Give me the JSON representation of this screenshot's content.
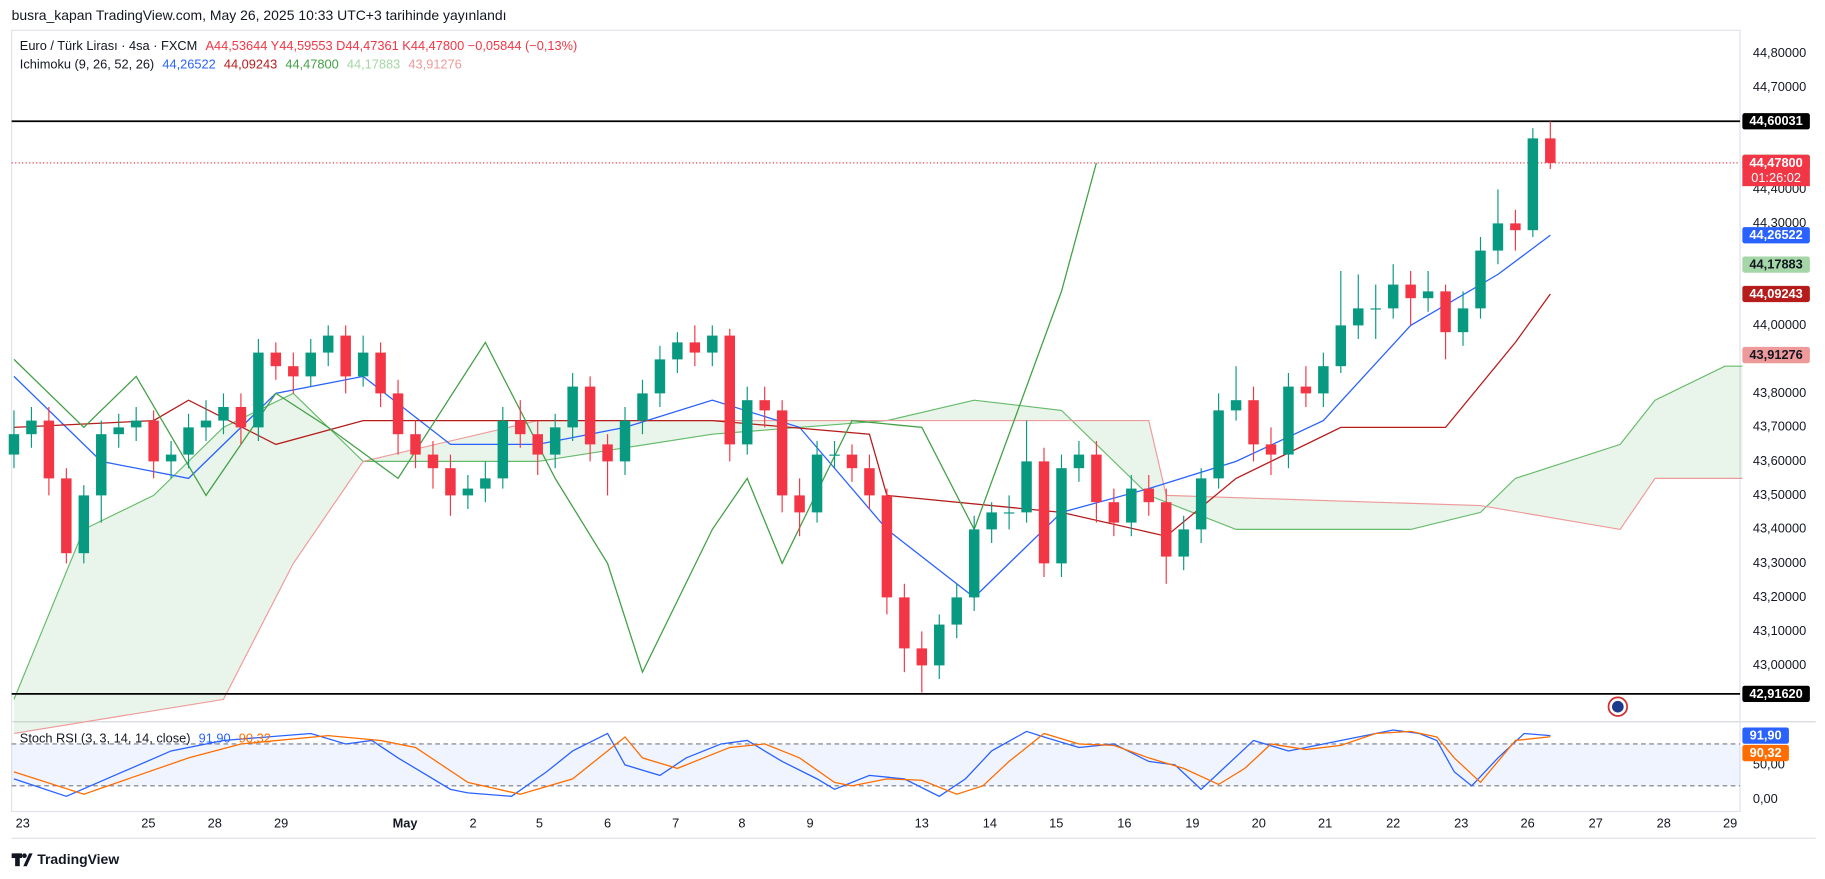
{
  "header": "busra_kapan TradingView.com, May 26, 2025 10:33 UTC+3 tarihinde yayınlandı",
  "footer": "TradingView",
  "chart_data": [
    {
      "type": "candlestick",
      "title": "Euro / Türk Lirası · 4sa · FXCM",
      "ohlc_text": "A44,53644  Y44,59553  D44,47361  K44,47800  −0,05844 (−0,13%)",
      "up_color": "#089981",
      "down_color": "#f23645",
      "open": [
        43.62,
        43.68,
        43.72,
        43.55,
        43.33,
        43.5,
        43.68,
        43.7,
        43.72,
        43.6,
        43.62,
        43.7,
        43.72,
        43.76,
        43.7,
        43.92,
        43.88,
        43.85,
        43.92,
        43.97,
        43.85,
        43.92,
        43.8,
        43.68,
        43.62,
        43.58,
        43.5,
        43.52,
        43.55,
        43.72,
        43.68,
        43.62,
        43.7,
        43.82,
        43.65,
        43.6,
        43.72,
        43.8,
        43.9,
        43.95,
        43.92,
        43.97,
        43.65,
        43.78,
        43.75,
        43.5,
        43.45,
        43.62,
        43.62,
        43.58,
        43.5,
        43.2,
        43.05,
        43.0,
        43.12,
        43.2,
        43.4,
        43.45,
        43.45,
        43.6,
        43.3,
        43.58,
        43.62,
        43.48,
        43.42,
        43.52,
        43.48,
        43.32,
        43.4,
        43.55,
        43.75,
        43.78,
        43.65,
        43.62,
        43.82,
        43.8,
        43.88,
        44.0,
        44.05,
        44.05,
        44.12,
        44.08,
        44.1,
        43.98,
        44.05,
        44.22,
        44.3,
        44.28,
        44.55
      ],
      "high": [
        43.75,
        43.76,
        43.76,
        43.58,
        43.53,
        43.72,
        43.74,
        43.76,
        43.75,
        43.66,
        43.74,
        43.78,
        43.8,
        43.8,
        43.96,
        43.95,
        43.92,
        43.96,
        44.0,
        44.0,
        43.97,
        43.95,
        43.84,
        43.72,
        43.66,
        43.62,
        43.56,
        43.6,
        43.76,
        43.78,
        43.72,
        43.74,
        43.86,
        43.85,
        43.68,
        43.76,
        43.84,
        43.94,
        43.98,
        44.0,
        44.0,
        43.99,
        43.82,
        43.82,
        43.78,
        43.55,
        43.66,
        43.66,
        43.65,
        43.62,
        43.52,
        43.24,
        43.1,
        43.15,
        43.24,
        43.44,
        43.48,
        43.5,
        43.72,
        43.64,
        43.62,
        43.66,
        43.66,
        43.52,
        43.56,
        43.56,
        43.52,
        43.44,
        43.58,
        43.8,
        43.88,
        43.82,
        43.7,
        43.86,
        43.88,
        43.92,
        44.16,
        44.15,
        44.12,
        44.18,
        44.16,
        44.16,
        44.12,
        44.1,
        44.26,
        44.4,
        44.34,
        44.58,
        44.6
      ],
      "low": [
        43.58,
        43.64,
        43.5,
        43.3,
        43.3,
        43.42,
        43.64,
        43.66,
        43.55,
        43.55,
        43.58,
        43.66,
        43.68,
        43.65,
        43.66,
        43.84,
        43.8,
        43.82,
        43.88,
        43.8,
        43.82,
        43.76,
        43.62,
        43.58,
        43.52,
        43.44,
        43.46,
        43.48,
        43.52,
        43.64,
        43.56,
        43.58,
        43.66,
        43.6,
        43.5,
        43.56,
        43.68,
        43.76,
        43.86,
        43.88,
        43.88,
        43.6,
        43.62,
        43.7,
        43.45,
        43.38,
        43.42,
        43.58,
        43.54,
        43.46,
        43.15,
        42.98,
        42.92,
        42.96,
        43.08,
        43.16,
        43.36,
        43.4,
        43.42,
        43.26,
        43.26,
        43.54,
        43.42,
        43.38,
        43.38,
        43.44,
        43.24,
        43.28,
        43.36,
        43.52,
        43.72,
        43.6,
        43.56,
        43.58,
        43.76,
        43.76,
        43.86,
        43.96,
        43.96,
        44.02,
        44.0,
        44.04,
        43.9,
        43.94,
        44.02,
        44.18,
        44.22,
        44.26,
        44.46
      ],
      "close": [
        43.68,
        43.72,
        43.55,
        43.33,
        43.5,
        43.68,
        43.7,
        43.72,
        43.6,
        43.62,
        43.7,
        43.72,
        43.76,
        43.7,
        43.92,
        43.88,
        43.85,
        43.92,
        43.97,
        43.85,
        43.92,
        43.8,
        43.68,
        43.62,
        43.58,
        43.5,
        43.52,
        43.55,
        43.72,
        43.68,
        43.62,
        43.7,
        43.82,
        43.65,
        43.6,
        43.72,
        43.8,
        43.9,
        43.95,
        43.92,
        43.97,
        43.65,
        43.78,
        43.75,
        43.5,
        43.45,
        43.62,
        43.62,
        43.58,
        43.5,
        43.2,
        43.05,
        43.0,
        43.12,
        43.2,
        43.4,
        43.45,
        43.45,
        43.6,
        43.3,
        43.58,
        43.62,
        43.48,
        43.42,
        43.52,
        43.48,
        43.32,
        43.4,
        43.55,
        43.75,
        43.78,
        43.65,
        43.62,
        43.82,
        43.8,
        43.88,
        44.0,
        44.05,
        44.05,
        44.12,
        44.08,
        44.1,
        43.98,
        44.05,
        44.22,
        44.3,
        44.28,
        44.55,
        44.478
      ],
      "ylim": [
        42.834,
        44.868
      ],
      "yticks": [
        {
          "value": 44.8,
          "label": "44,80000"
        },
        {
          "value": 44.7,
          "label": "44,70000"
        },
        {
          "value": 44.4,
          "label": "44,40000"
        },
        {
          "value": 44.3,
          "label": "44,30000"
        },
        {
          "value": 44.0,
          "label": "44,00000"
        },
        {
          "value": 43.8,
          "label": "43,80000"
        },
        {
          "value": 43.7,
          "label": "43,70000"
        },
        {
          "value": 43.6,
          "label": "43,60000"
        },
        {
          "value": 43.5,
          "label": "43,50000"
        },
        {
          "value": 43.4,
          "label": "43,40000"
        },
        {
          "value": 43.3,
          "label": "43,30000"
        },
        {
          "value": 43.2,
          "label": "43,20000"
        },
        {
          "value": 43.1,
          "label": "43,10000"
        },
        {
          "value": 43.0,
          "label": "43,00000"
        }
      ],
      "xticks": [
        {
          "value": 0.5,
          "label": "23"
        },
        {
          "value": 7.7,
          "label": "25"
        },
        {
          "value": 11.5,
          "label": "28"
        },
        {
          "value": 15.3,
          "label": "29"
        },
        {
          "value": 22.4,
          "label": "May"
        },
        {
          "value": 26.3,
          "label": "2"
        },
        {
          "value": 30.1,
          "label": "5"
        },
        {
          "value": 34,
          "label": "6"
        },
        {
          "value": 37.9,
          "label": "7"
        },
        {
          "value": 41.7,
          "label": "8"
        },
        {
          "value": 45.6,
          "label": "9"
        },
        {
          "value": 52,
          "label": "13"
        },
        {
          "value": 55.9,
          "label": "14"
        },
        {
          "value": 59.7,
          "label": "15"
        },
        {
          "value": 63.6,
          "label": "16"
        },
        {
          "value": 67.5,
          "label": "19"
        },
        {
          "value": 71.3,
          "label": "20"
        },
        {
          "value": 75.1,
          "label": "21"
        },
        {
          "value": 79,
          "label": "22"
        },
        {
          "value": 82.9,
          "label": "23"
        },
        {
          "value": 86.7,
          "label": "26"
        },
        {
          "value": 90.6,
          "label": "27"
        },
        {
          "value": 94.5,
          "label": "28"
        },
        {
          "value": 98.3,
          "label": "29"
        }
      ],
      "indicator_label": "Ichimoku (9, 26, 52, 26)",
      "ichimoku_values": [
        {
          "value": 44.26522,
          "label": "44,26522",
          "color": "#2962ff",
          "text_color": "#ffffff"
        },
        {
          "value": 44.09243,
          "label": "44,09243",
          "color": "#b71c1c",
          "text_color": "#ffffff"
        },
        {
          "value": 44.478,
          "label": "44,47800",
          "color": "#43a047",
          "text_color": "#ffffff"
        },
        {
          "value": 44.17883,
          "label": "44,17883",
          "color": "#a5d6a7",
          "text_color": "#131722"
        },
        {
          "value": 43.91276,
          "label": "43,91276",
          "color": "#ef9a9a",
          "text_color": "#131722"
        }
      ],
      "price_labels": [
        {
          "value": 44.60031,
          "label": "44,60031",
          "color": "#000000",
          "text_color": "#ffffff",
          "line": "solid"
        },
        {
          "value": 44.478,
          "label": "44,47800",
          "color": "#f23645",
          "text_color": "#ffffff",
          "line": "dotted"
        },
        {
          "value": 42.9162,
          "label": "42,91620",
          "color": "#000000",
          "text_color": "#ffffff",
          "line": "solid"
        }
      ],
      "countdown": "01:26:02",
      "lines": [
        {
          "color": "#2962ff",
          "x": [
            0,
            5,
            10,
            15,
            20,
            25,
            30,
            35,
            40,
            45,
            50,
            55,
            60,
            65,
            70,
            75,
            80,
            85,
            88
          ],
          "values": [
            43.85,
            43.6,
            43.55,
            43.8,
            43.85,
            43.65,
            43.65,
            43.7,
            43.78,
            43.7,
            43.4,
            43.2,
            43.45,
            43.52,
            43.6,
            43.72,
            44.0,
            44.15,
            44.26522
          ]
        },
        {
          "color": "#b71c1c",
          "x": [
            0,
            8,
            10,
            15,
            20,
            30,
            40,
            49,
            50,
            60,
            66,
            70,
            76,
            82,
            86,
            88
          ],
          "values": [
            43.7,
            43.72,
            43.78,
            43.65,
            43.72,
            43.72,
            43.72,
            43.68,
            43.5,
            43.45,
            43.38,
            43.55,
            43.7,
            43.7,
            43.95,
            44.09243
          ]
        },
        {
          "color": "#43a047",
          "x": [
            0,
            4,
            7,
            11,
            15,
            18,
            22,
            27,
            31,
            34,
            36,
            40,
            42,
            44,
            48,
            52,
            55,
            60,
            62
          ],
          "values": [
            43.9,
            43.7,
            43.85,
            43.5,
            43.8,
            43.7,
            43.55,
            43.95,
            43.55,
            43.3,
            42.98,
            43.4,
            43.55,
            43.3,
            43.72,
            43.7,
            43.4,
            44.1,
            44.478
          ]
        }
      ],
      "cloud": {
        "color": "#4caf50",
        "span_a": {
          "color": "#66bb6a",
          "x": [
            0,
            4,
            8,
            12,
            16,
            20,
            30,
            40,
            50,
            55,
            60,
            65,
            70,
            80,
            84,
            86,
            92,
            94,
            98,
            99
          ],
          "values": [
            42.9,
            43.4,
            43.5,
            43.7,
            43.8,
            43.6,
            43.6,
            43.68,
            43.72,
            43.78,
            43.75,
            43.5,
            43.4,
            43.4,
            43.45,
            43.55,
            43.65,
            43.78,
            43.88,
            43.88
          ]
        },
        "span_b": {
          "color": "#ef9a9a",
          "x": [
            0,
            12,
            16,
            20,
            30,
            50,
            65,
            66,
            84,
            92,
            94,
            99
          ],
          "values": [
            42.8,
            42.9,
            43.3,
            43.6,
            43.72,
            43.72,
            43.72,
            43.5,
            43.47,
            43.4,
            43.55,
            43.55
          ]
        }
      }
    },
    {
      "type": "line",
      "title": "Stoch RSI (3, 3, 14, 14, close)",
      "series": [
        {
          "color": "#2962ff",
          "value": 91.9,
          "value_label": "91,90",
          "x": [
            0,
            3,
            9,
            12,
            17,
            19,
            20.5,
            22,
            25,
            26,
            28.5,
            30.5,
            32,
            34,
            35,
            37,
            38.5,
            40.5,
            42,
            44,
            46,
            47,
            49,
            51,
            53,
            54.5,
            56,
            58,
            59,
            61,
            63,
            65,
            66.5,
            68,
            69.5,
            71,
            73,
            75,
            77,
            79,
            80.5,
            81.5,
            82.5,
            83.5,
            85,
            86.5,
            88
          ],
          "values": [
            30,
            5,
            70,
            85,
            95,
            80,
            85,
            60,
            15,
            10,
            5,
            40,
            70,
            95,
            50,
            35,
            60,
            80,
            85,
            55,
            30,
            15,
            35,
            30,
            5,
            30,
            70,
            98,
            90,
            75,
            80,
            55,
            50,
            15,
            50,
            85,
            70,
            80,
            90,
            100,
            95,
            85,
            40,
            20,
            60,
            95,
            91.9
          ]
        },
        {
          "color": "#ff6d00",
          "value": 90.32,
          "value_label": "90,32",
          "x": [
            0,
            4,
            10,
            13,
            18,
            21,
            23,
            26,
            29,
            32,
            35,
            36,
            38,
            41,
            43,
            45,
            47,
            48,
            50,
            52,
            54,
            55.5,
            57,
            59,
            61,
            63,
            65,
            67,
            69,
            70.5,
            72,
            74,
            76,
            78,
            80,
            81.5,
            82.5,
            84,
            86,
            88
          ],
          "values": [
            40,
            8,
            60,
            80,
            92,
            85,
            75,
            25,
            8,
            30,
            90,
            60,
            45,
            75,
            80,
            60,
            25,
            20,
            30,
            28,
            8,
            20,
            55,
            95,
            80,
            78,
            60,
            45,
            22,
            45,
            80,
            72,
            78,
            95,
            98,
            90,
            60,
            25,
            85,
            90.32
          ]
        }
      ],
      "ylim": [
        -16.7,
        111.7
      ],
      "yticks": [
        {
          "value": 0,
          "label": "0,00"
        },
        {
          "value": 50,
          "label": "50,00"
        }
      ],
      "bands": [
        20,
        80
      ]
    }
  ]
}
